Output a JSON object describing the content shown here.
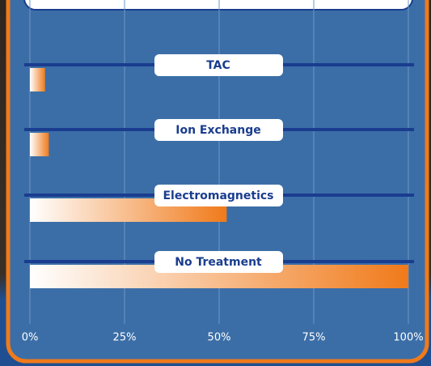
{
  "chart_data": {
    "type": "bar",
    "orientation": "horizontal",
    "categories": [
      "TAC",
      "Ion Exchange",
      "Electromagnetics",
      "No Treatment"
    ],
    "values": [
      4,
      5,
      52,
      100
    ],
    "color": "#f07a1a",
    "xlim": [
      0,
      100
    ],
    "xticks": [
      {
        "value": 0,
        "label": "0%"
      },
      {
        "value": 25,
        "label": "25%"
      },
      {
        "value": 50,
        "label": "50%"
      },
      {
        "value": 75,
        "label": "75%"
      },
      {
        "value": 100,
        "label": "100%"
      }
    ],
    "grid": true
  }
}
